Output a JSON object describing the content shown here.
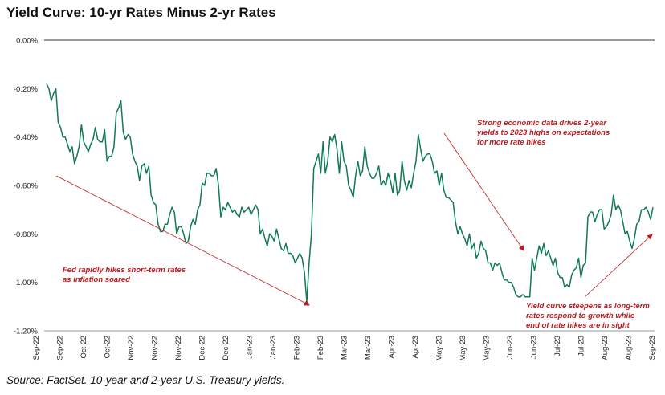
{
  "title": "Yield Curve: 10-yr Rates Minus 2-yr Rates",
  "source": "Source: FactSet. 10-year and 2-year U.S. Treasury yields.",
  "colors": {
    "line": "#117a57",
    "annotation": "#c0171d",
    "axis": "#333333"
  },
  "chart_data": {
    "type": "line",
    "title": "Yield Curve: 10-yr Rates Minus 2-yr Rates",
    "xlabel": "",
    "ylabel": "",
    "ylim": [
      -1.2,
      0.0
    ],
    "ytick_values": [
      0.0,
      -0.2,
      -0.4,
      -0.6,
      -0.8,
      -1.0,
      -1.2
    ],
    "ytick_labels": [
      "0.00%",
      "-0.20%",
      "-0.40%",
      "-0.60%",
      "-0.80%",
      "-1.00%",
      "-1.20%"
    ],
    "xtick_labels": [
      "Sep-22",
      "Sep-22",
      "Oct-22",
      "Oct-22",
      "Nov-22",
      "Nov-22",
      "Nov-22",
      "Dec-22",
      "Dec-22",
      "Jan-23",
      "Jan-23",
      "Feb-23",
      "Feb-23",
      "Mar-23",
      "Mar-23",
      "Apr-23",
      "Apr-23",
      "May-23",
      "May-23",
      "May-23",
      "Jun-23",
      "Jun-23",
      "Jul-23",
      "Jul-23",
      "Aug-23",
      "Aug-23",
      "Sep-23"
    ],
    "grid": false,
    "series": [
      {
        "values": [
          -0.18,
          -0.2,
          -0.25,
          -0.22,
          -0.2,
          -0.34,
          -0.36,
          -0.4,
          -0.4,
          -0.43,
          -0.46,
          -0.44,
          -0.51,
          -0.48,
          -0.44,
          -0.35,
          -0.42,
          -0.44,
          -0.46,
          -0.43,
          -0.41,
          -0.36,
          -0.41,
          -0.42,
          -0.42,
          -0.37,
          -0.5,
          -0.48,
          -0.48,
          -0.44,
          -0.3,
          -0.28,
          -0.25,
          -0.38,
          -0.41,
          -0.39,
          -0.4,
          -0.47,
          -0.5,
          -0.52,
          -0.58,
          -0.52,
          -0.51,
          -0.55,
          -0.52,
          -0.64,
          -0.67,
          -0.68,
          -0.76,
          -0.79,
          -0.79,
          -0.76,
          -0.76,
          -0.72,
          -0.69,
          -0.71,
          -0.8,
          -0.77,
          -0.77,
          -0.8,
          -0.84,
          -0.83,
          -0.77,
          -0.74,
          -0.76,
          -0.7,
          -0.68,
          -0.59,
          -0.6,
          -0.55,
          -0.55,
          -0.56,
          -0.56,
          -0.53,
          -0.6,
          -0.73,
          -0.69,
          -0.7,
          -0.67,
          -0.69,
          -0.71,
          -0.7,
          -0.72,
          -0.73,
          -0.69,
          -0.71,
          -0.7,
          -0.69,
          -0.72,
          -0.7,
          -0.68,
          -0.7,
          -0.8,
          -0.78,
          -0.82,
          -0.85,
          -0.8,
          -0.81,
          -0.83,
          -0.78,
          -0.82,
          -0.86,
          -0.87,
          -0.84,
          -0.88,
          -0.88,
          -0.89,
          -0.92,
          -0.9,
          -0.88,
          -0.9,
          -0.96,
          -1.08,
          -0.92,
          -0.8,
          -0.53,
          -0.5,
          -0.47,
          -0.55,
          -0.42,
          -0.55,
          -0.5,
          -0.4,
          -0.42,
          -0.39,
          -0.45,
          -0.55,
          -0.42,
          -0.5,
          -0.52,
          -0.6,
          -0.62,
          -0.65,
          -0.56,
          -0.5,
          -0.56,
          -0.54,
          -0.44,
          -0.52,
          -0.55,
          -0.57,
          -0.57,
          -0.55,
          -0.52,
          -0.6,
          -0.58,
          -0.6,
          -0.55,
          -0.58,
          -0.63,
          -0.55,
          -0.64,
          -0.62,
          -0.5,
          -0.58,
          -0.62,
          -0.58,
          -0.61,
          -0.55,
          -0.5,
          -0.39,
          -0.45,
          -0.5,
          -0.48,
          -0.47,
          -0.47,
          -0.5,
          -0.55,
          -0.54,
          -0.6,
          -0.55,
          -0.62,
          -0.65,
          -0.65,
          -0.66,
          -0.67,
          -0.75,
          -0.8,
          -0.77,
          -0.8,
          -0.82,
          -0.85,
          -0.8,
          -0.86,
          -0.84,
          -0.9,
          -0.88,
          -0.83,
          -0.86,
          -0.87,
          -0.92,
          -0.92,
          -0.95,
          -0.92,
          -0.93,
          -0.92,
          -0.96,
          -0.99,
          -0.99,
          -1.0,
          -1.0,
          -1.02,
          -1.05,
          -1.06,
          -1.06,
          -1.05,
          -1.06,
          -1.06,
          -1.06,
          -0.9,
          -0.95,
          -0.9,
          -0.85,
          -0.88,
          -0.84,
          -0.89,
          -0.87,
          -0.9,
          -0.93,
          -0.9,
          -0.96,
          -0.98,
          -0.98,
          -1.02,
          -1.01,
          -1.02,
          -0.97,
          -0.95,
          -0.94,
          -0.9,
          -0.98,
          -0.93,
          -0.92,
          -0.73,
          -0.71,
          -0.71,
          -0.75,
          -0.72,
          -0.7,
          -0.7,
          -0.78,
          -0.77,
          -0.75,
          -0.72,
          -0.64,
          -0.7,
          -0.68,
          -0.7,
          -0.75,
          -0.8,
          -0.79,
          -0.83,
          -0.86,
          -0.82,
          -0.76,
          -0.75,
          -0.7,
          -0.7,
          -0.69,
          -0.71,
          -0.74,
          -0.69
        ]
      }
    ],
    "annotations": [
      {
        "name": "annotation-fed-hikes",
        "lines": [
          "Fed rapidly hikes short-term rates",
          "as inflation soared"
        ]
      },
      {
        "name": "annotation-strong-data",
        "lines": [
          "Strong economic data drives 2-year",
          "yields to 2023 highs on expectations",
          "for more rate hikes"
        ]
      },
      {
        "name": "annotation-steepens",
        "lines": [
          "Yield curve steepens as long-term",
          "rates respond to growth while",
          "end of rate hikes are in sight"
        ]
      }
    ]
  }
}
